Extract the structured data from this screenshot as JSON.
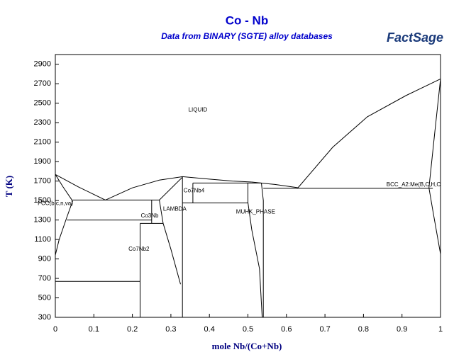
{
  "chart_data": {
    "type": "line",
    "title": "Co - Nb",
    "subtitle": "Data from BINARY (SGTE) alloy databases",
    "logo": "FactSage",
    "x_label": "mole Nb/(Co+Nb)",
    "y_label": "T (K)",
    "xlim": [
      0,
      1
    ],
    "xticks": [
      0,
      0.1,
      0.2,
      0.3,
      0.4,
      0.5,
      0.6,
      0.7,
      0.8,
      0.9,
      1
    ],
    "ylim": [
      300,
      3000
    ],
    "yticks": [
      300,
      500,
      700,
      900,
      1100,
      1300,
      1500,
      1700,
      1900,
      2100,
      2300,
      2500,
      2700,
      2900
    ],
    "line_color": "#000000",
    "series": [
      {
        "x": [
          0,
          0.06,
          0.13
        ],
        "y": [
          1768,
          1640,
          1505
        ]
      },
      {
        "x": [
          0.13,
          0.2,
          0.27,
          0.33,
          0.4,
          0.46,
          0.51
        ],
        "y": [
          1505,
          1630,
          1710,
          1745,
          1720,
          1700,
          1690
        ]
      },
      {
        "x": [
          0.51,
          0.57,
          0.63
        ],
        "y": [
          1690,
          1665,
          1632
        ]
      },
      {
        "x": [
          0.63,
          0.72,
          0.81,
          0.91,
          1
        ],
        "y": [
          1632,
          2047,
          2360,
          2578,
          2750
        ]
      },
      {
        "x": [
          0,
          0.02,
          0.045
        ],
        "y": [
          1768,
          1640,
          1495
        ]
      },
      {
        "x": [
          0.045,
          0.03,
          0.01,
          0
        ],
        "y": [
          1495,
          1330,
          1100,
          940
        ]
      },
      {
        "x": [
          0.045,
          0.27
        ],
        "y": [
          1505,
          1505
        ]
      },
      {
        "x": [
          0.03,
          0.25
        ],
        "y": [
          1300,
          1300
        ]
      },
      {
        "x": [
          0.25,
          0.25
        ],
        "y": [
          1505,
          1265
        ]
      },
      {
        "x": [
          0.22,
          0.28
        ],
        "y": [
          1265,
          1265
        ]
      },
      {
        "x": [
          0.22,
          0.22
        ],
        "y": [
          1265,
          300
        ]
      },
      {
        "x": [
          0,
          0.22
        ],
        "y": [
          670,
          670
        ]
      },
      {
        "x": [
          0.33,
          0.27,
          0.28,
          0.3,
          0.325
        ],
        "y": [
          1740,
          1505,
          1265,
          1000,
          640
        ]
      },
      {
        "x": [
          0.33,
          0.33
        ],
        "y": [
          1740,
          300
        ]
      },
      {
        "x": [
          0.357,
          0.5
        ],
        "y": [
          1680,
          1680
        ]
      },
      {
        "x": [
          0.357,
          0.357
        ],
        "y": [
          1680,
          1475
        ]
      },
      {
        "x": [
          0.33,
          0.5
        ],
        "y": [
          1475,
          1475
        ]
      },
      {
        "x": [
          0.5,
          0.5,
          0.51,
          0.53,
          0.537
        ],
        "y": [
          1680,
          1480,
          1200,
          800,
          300
        ]
      },
      {
        "x": [
          0.535,
          0.54,
          0.54
        ],
        "y": [
          1680,
          1500,
          300
        ]
      },
      {
        "x": [
          0.5,
          0.535
        ],
        "y": [
          1680,
          1680
        ]
      },
      {
        "x": [
          0.54,
          0.98
        ],
        "y": [
          1625,
          1625
        ]
      },
      {
        "x": [
          1,
          0.985,
          0.97
        ],
        "y": [
          2750,
          2200,
          1630
        ]
      },
      {
        "x": [
          0.97,
          0.98,
          1
        ],
        "y": [
          1630,
          1400,
          950
        ]
      }
    ],
    "annotations": [
      {
        "text": "LIQUID",
        "x": 0.37,
        "y": 2430
      },
      {
        "text": "FCC(b,c,n,va)",
        "x": 0.0,
        "y": 1470
      },
      {
        "text": "Co3Nb",
        "x": 0.245,
        "y": 1340
      },
      {
        "text": "LAMBDA",
        "x": 0.31,
        "y": 1410
      },
      {
        "text": "Co7Nb4",
        "x": 0.36,
        "y": 1600
      },
      {
        "text": "MUHK_PHASE",
        "x": 0.52,
        "y": 1380
      },
      {
        "text": "Co7Nb2",
        "x": 0.217,
        "y": 1000
      },
      {
        "text": "BCC_A2:Me(B,C,H,C",
        "x": 0.93,
        "y": 1660
      }
    ]
  }
}
